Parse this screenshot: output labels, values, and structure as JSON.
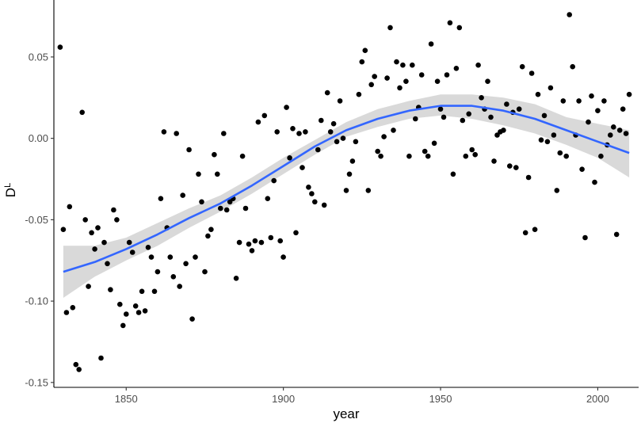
{
  "chart_data": {
    "type": "scatter",
    "xlabel": "year",
    "ylabel_base": "D",
    "ylabel_sup": "L",
    "xlim": [
      1827,
      2013
    ],
    "ylim": [
      -0.153,
      0.085
    ],
    "x_ticks": [
      1850,
      1900,
      1950,
      2000
    ],
    "y_ticks": [
      {
        "value": 0.05,
        "label": "0.05"
      },
      {
        "value": 0.0,
        "label": "0.00"
      },
      {
        "value": -0.05,
        "label": "-0.05"
      },
      {
        "value": -0.1,
        "label": "-0.10"
      },
      {
        "value": -0.15,
        "label": "-0.15"
      }
    ],
    "grid": false,
    "colors": {
      "points": "#000000",
      "smooth_line": "#3366ff",
      "confidence_band": "#bfbfbf"
    },
    "points": [
      [
        1829,
        0.056
      ],
      [
        1830,
        -0.056
      ],
      [
        1831,
        -0.107
      ],
      [
        1832,
        -0.042
      ],
      [
        1833,
        -0.104
      ],
      [
        1834,
        -0.139
      ],
      [
        1835,
        -0.142
      ],
      [
        1836,
        0.016
      ],
      [
        1837,
        -0.05
      ],
      [
        1838,
        -0.091
      ],
      [
        1839,
        -0.058
      ],
      [
        1840,
        -0.068
      ],
      [
        1841,
        -0.055
      ],
      [
        1842,
        -0.135
      ],
      [
        1843,
        -0.064
      ],
      [
        1844,
        -0.077
      ],
      [
        1845,
        -0.093
      ],
      [
        1846,
        -0.044
      ],
      [
        1847,
        -0.05
      ],
      [
        1848,
        -0.102
      ],
      [
        1849,
        -0.115
      ],
      [
        1850,
        -0.108
      ],
      [
        1851,
        -0.064
      ],
      [
        1852,
        -0.07
      ],
      [
        1853,
        -0.103
      ],
      [
        1854,
        -0.107
      ],
      [
        1855,
        -0.094
      ],
      [
        1856,
        -0.106
      ],
      [
        1857,
        -0.067
      ],
      [
        1858,
        -0.073
      ],
      [
        1859,
        -0.094
      ],
      [
        1860,
        -0.082
      ],
      [
        1861,
        -0.037
      ],
      [
        1862,
        0.004
      ],
      [
        1863,
        -0.055
      ],
      [
        1864,
        -0.073
      ],
      [
        1865,
        -0.085
      ],
      [
        1866,
        0.003
      ],
      [
        1867,
        -0.091
      ],
      [
        1868,
        -0.035
      ],
      [
        1869,
        -0.077
      ],
      [
        1870,
        -0.007
      ],
      [
        1871,
        -0.111
      ],
      [
        1872,
        -0.073
      ],
      [
        1873,
        -0.022
      ],
      [
        1874,
        -0.039
      ],
      [
        1875,
        -0.082
      ],
      [
        1876,
        -0.06
      ],
      [
        1877,
        -0.056
      ],
      [
        1878,
        -0.01
      ],
      [
        1879,
        -0.022
      ],
      [
        1880,
        -0.043
      ],
      [
        1881,
        0.003
      ],
      [
        1882,
        -0.044
      ],
      [
        1883,
        -0.039
      ],
      [
        1884,
        -0.037
      ],
      [
        1885,
        -0.086
      ],
      [
        1886,
        -0.064
      ],
      [
        1887,
        -0.011
      ],
      [
        1888,
        -0.043
      ],
      [
        1889,
        -0.065
      ],
      [
        1890,
        -0.069
      ],
      [
        1891,
        -0.063
      ],
      [
        1892,
        0.01
      ],
      [
        1893,
        -0.064
      ],
      [
        1894,
        0.014
      ],
      [
        1895,
        -0.037
      ],
      [
        1896,
        -0.061
      ],
      [
        1897,
        -0.026
      ],
      [
        1898,
        0.004
      ],
      [
        1899,
        -0.063
      ],
      [
        1900,
        -0.073
      ],
      [
        1901,
        0.019
      ],
      [
        1902,
        -0.012
      ],
      [
        1903,
        0.006
      ],
      [
        1904,
        -0.058
      ],
      [
        1905,
        0.003
      ],
      [
        1906,
        -0.018
      ],
      [
        1907,
        0.004
      ],
      [
        1908,
        -0.03
      ],
      [
        1909,
        -0.034
      ],
      [
        1910,
        -0.039
      ],
      [
        1911,
        -0.007
      ],
      [
        1912,
        0.011
      ],
      [
        1913,
        -0.041
      ],
      [
        1914,
        0.028
      ],
      [
        1915,
        0.004
      ],
      [
        1916,
        0.009
      ],
      [
        1917,
        -0.002
      ],
      [
        1918,
        0.023
      ],
      [
        1919,
        0.0
      ],
      [
        1920,
        -0.032
      ],
      [
        1921,
        -0.022
      ],
      [
        1922,
        -0.014
      ],
      [
        1923,
        -0.002
      ],
      [
        1924,
        0.027
      ],
      [
        1925,
        0.047
      ],
      [
        1926,
        0.054
      ],
      [
        1927,
        -0.032
      ],
      [
        1928,
        0.033
      ],
      [
        1929,
        0.038
      ],
      [
        1930,
        -0.008
      ],
      [
        1931,
        -0.011
      ],
      [
        1932,
        0.001
      ],
      [
        1933,
        0.037
      ],
      [
        1934,
        0.068
      ],
      [
        1935,
        0.005
      ],
      [
        1936,
        0.047
      ],
      [
        1937,
        0.031
      ],
      [
        1938,
        0.045
      ],
      [
        1939,
        0.035
      ],
      [
        1940,
        -0.011
      ],
      [
        1941,
        0.045
      ],
      [
        1942,
        0.012
      ],
      [
        1943,
        0.019
      ],
      [
        1944,
        0.039
      ],
      [
        1945,
        -0.008
      ],
      [
        1946,
        -0.011
      ],
      [
        1947,
        0.058
      ],
      [
        1948,
        -0.003
      ],
      [
        1949,
        0.035
      ],
      [
        1950,
        0.018
      ],
      [
        1951,
        0.013
      ],
      [
        1952,
        0.039
      ],
      [
        1953,
        0.071
      ],
      [
        1954,
        -0.022
      ],
      [
        1955,
        0.043
      ],
      [
        1956,
        0.068
      ],
      [
        1957,
        0.011
      ],
      [
        1958,
        -0.011
      ],
      [
        1959,
        0.015
      ],
      [
        1960,
        -0.007
      ],
      [
        1961,
        -0.01
      ],
      [
        1962,
        0.045
      ],
      [
        1963,
        0.025
      ],
      [
        1964,
        0.018
      ],
      [
        1965,
        0.035
      ],
      [
        1966,
        0.013
      ],
      [
        1967,
        -0.014
      ],
      [
        1968,
        0.002
      ],
      [
        1969,
        0.004
      ],
      [
        1970,
        0.005
      ],
      [
        1971,
        0.021
      ],
      [
        1972,
        -0.017
      ],
      [
        1973,
        0.016
      ],
      [
        1974,
        -0.018
      ],
      [
        1975,
        0.018
      ],
      [
        1976,
        0.044
      ],
      [
        1977,
        -0.058
      ],
      [
        1978,
        -0.024
      ],
      [
        1979,
        0.04
      ],
      [
        1980,
        -0.056
      ],
      [
        1981,
        0.027
      ],
      [
        1982,
        -0.001
      ],
      [
        1983,
        0.014
      ],
      [
        1984,
        -0.002
      ],
      [
        1985,
        0.031
      ],
      [
        1986,
        0.002
      ],
      [
        1987,
        -0.032
      ],
      [
        1988,
        -0.009
      ],
      [
        1989,
        0.023
      ],
      [
        1990,
        -0.011
      ],
      [
        1991,
        0.076
      ],
      [
        1992,
        0.044
      ],
      [
        1993,
        0.002
      ],
      [
        1994,
        0.023
      ],
      [
        1995,
        -0.019
      ],
      [
        1996,
        -0.061
      ],
      [
        1997,
        0.01
      ],
      [
        1998,
        0.026
      ],
      [
        1999,
        -0.027
      ],
      [
        2000,
        0.017
      ],
      [
        2001,
        -0.011
      ],
      [
        2002,
        0.023
      ],
      [
        2003,
        -0.004
      ],
      [
        2004,
        0.002
      ],
      [
        2005,
        0.007
      ],
      [
        2006,
        -0.059
      ],
      [
        2007,
        0.005
      ],
      [
        2008,
        0.018
      ],
      [
        2009,
        0.003
      ],
      [
        2010,
        0.027
      ]
    ],
    "smooth": {
      "x": [
        1830,
        1840,
        1850,
        1860,
        1870,
        1880,
        1890,
        1900,
        1910,
        1920,
        1930,
        1940,
        1950,
        1955,
        1960,
        1970,
        1980,
        1990,
        2000,
        2010
      ],
      "y": [
        -0.082,
        -0.076,
        -0.068,
        -0.059,
        -0.049,
        -0.04,
        -0.029,
        -0.017,
        -0.005,
        0.005,
        0.012,
        0.017,
        0.02,
        0.02,
        0.02,
        0.017,
        0.012,
        0.005,
        -0.002,
        -0.009
      ],
      "lower": [
        -0.098,
        -0.085,
        -0.075,
        -0.066,
        -0.055,
        -0.045,
        -0.034,
        -0.022,
        -0.01,
        0.001,
        0.007,
        0.012,
        0.014,
        0.013,
        0.012,
        0.008,
        0.003,
        -0.004,
        -0.012,
        -0.024
      ],
      "upper": [
        -0.066,
        -0.066,
        -0.061,
        -0.052,
        -0.043,
        -0.035,
        -0.024,
        -0.012,
        -0.001,
        0.01,
        0.018,
        0.023,
        0.027,
        0.027,
        0.027,
        0.025,
        0.021,
        0.013,
        0.009,
        0.005
      ]
    }
  }
}
